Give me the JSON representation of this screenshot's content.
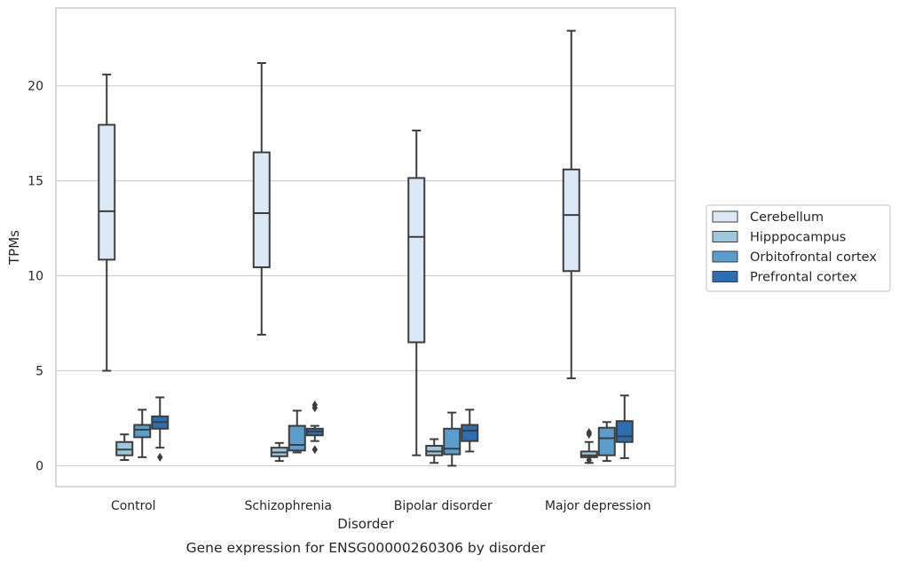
{
  "chart_data": {
    "type": "box",
    "caption": "Gene expression for ENSG00000260306 by disorder",
    "xlabel": "Disorder",
    "ylabel": "TPMs",
    "ylim": [
      -1.1,
      24.1
    ],
    "yticks": [
      0,
      5,
      10,
      15,
      20
    ],
    "grid": "horizontal",
    "legend_position": "right",
    "categories": [
      "Control",
      "Schizophrenia",
      "Bipolar disorder",
      "Major depression"
    ],
    "series": [
      {
        "name": "Cerebellum",
        "color": "#dbe9f6",
        "boxes": [
          {
            "whislo": 5.0,
            "q1": 10.85,
            "med": 13.4,
            "q3": 17.95,
            "whishi": 20.6,
            "fliers": []
          },
          {
            "whislo": 6.9,
            "q1": 10.45,
            "med": 13.3,
            "q3": 16.5,
            "whishi": 21.2,
            "fliers": []
          },
          {
            "whislo": 0.55,
            "q1": 6.5,
            "med": 12.05,
            "q3": 15.15,
            "whishi": 17.65,
            "fliers": []
          },
          {
            "whislo": 4.6,
            "q1": 10.25,
            "med": 13.2,
            "q3": 15.6,
            "whishi": 22.9,
            "fliers": []
          }
        ]
      },
      {
        "name": "Hipppocampus",
        "color": "#9ac8e0",
        "boxes": [
          {
            "whislo": 0.3,
            "q1": 0.55,
            "med": 0.85,
            "q3": 1.25,
            "whishi": 1.65,
            "fliers": []
          },
          {
            "whislo": 0.25,
            "q1": 0.5,
            "med": 0.7,
            "q3": 0.95,
            "whishi": 1.2,
            "fliers": []
          },
          {
            "whislo": 0.15,
            "q1": 0.55,
            "med": 0.75,
            "q3": 1.05,
            "whishi": 1.4,
            "fliers": []
          },
          {
            "whislo": 0.15,
            "q1": 0.45,
            "med": 0.55,
            "q3": 0.75,
            "whishi": 1.25,
            "fliers": [
              0.3,
              1.65,
              1.75
            ]
          }
        ]
      },
      {
        "name": "Orbitofrontal cortex",
        "color": "#5a9ecd",
        "boxes": [
          {
            "whislo": 0.45,
            "q1": 1.5,
            "med": 1.9,
            "q3": 2.15,
            "whishi": 2.95,
            "fliers": []
          },
          {
            "whislo": 0.7,
            "q1": 0.8,
            "med": 1.1,
            "q3": 2.1,
            "whishi": 2.9,
            "fliers": []
          },
          {
            "whislo": 0.0,
            "q1": 0.6,
            "med": 0.9,
            "q3": 1.95,
            "whishi": 2.8,
            "fliers": []
          },
          {
            "whislo": 0.25,
            "q1": 0.55,
            "med": 1.45,
            "q3": 2.0,
            "whishi": 2.3,
            "fliers": []
          }
        ]
      },
      {
        "name": "Prefrontal cortex",
        "color": "#2b6fb1",
        "boxes": [
          {
            "whislo": 0.95,
            "q1": 1.95,
            "med": 2.3,
            "q3": 2.6,
            "whishi": 3.6,
            "fliers": [
              0.45
            ]
          },
          {
            "whislo": 1.3,
            "q1": 1.6,
            "med": 1.8,
            "q3": 1.95,
            "whishi": 2.1,
            "fliers": [
              0.85,
              3.05,
              3.2
            ]
          },
          {
            "whislo": 0.75,
            "q1": 1.3,
            "med": 1.85,
            "q3": 2.15,
            "whishi": 2.95,
            "fliers": []
          },
          {
            "whislo": 0.4,
            "q1": 1.25,
            "med": 1.55,
            "q3": 2.35,
            "whishi": 3.7,
            "fliers": []
          }
        ]
      }
    ]
  }
}
